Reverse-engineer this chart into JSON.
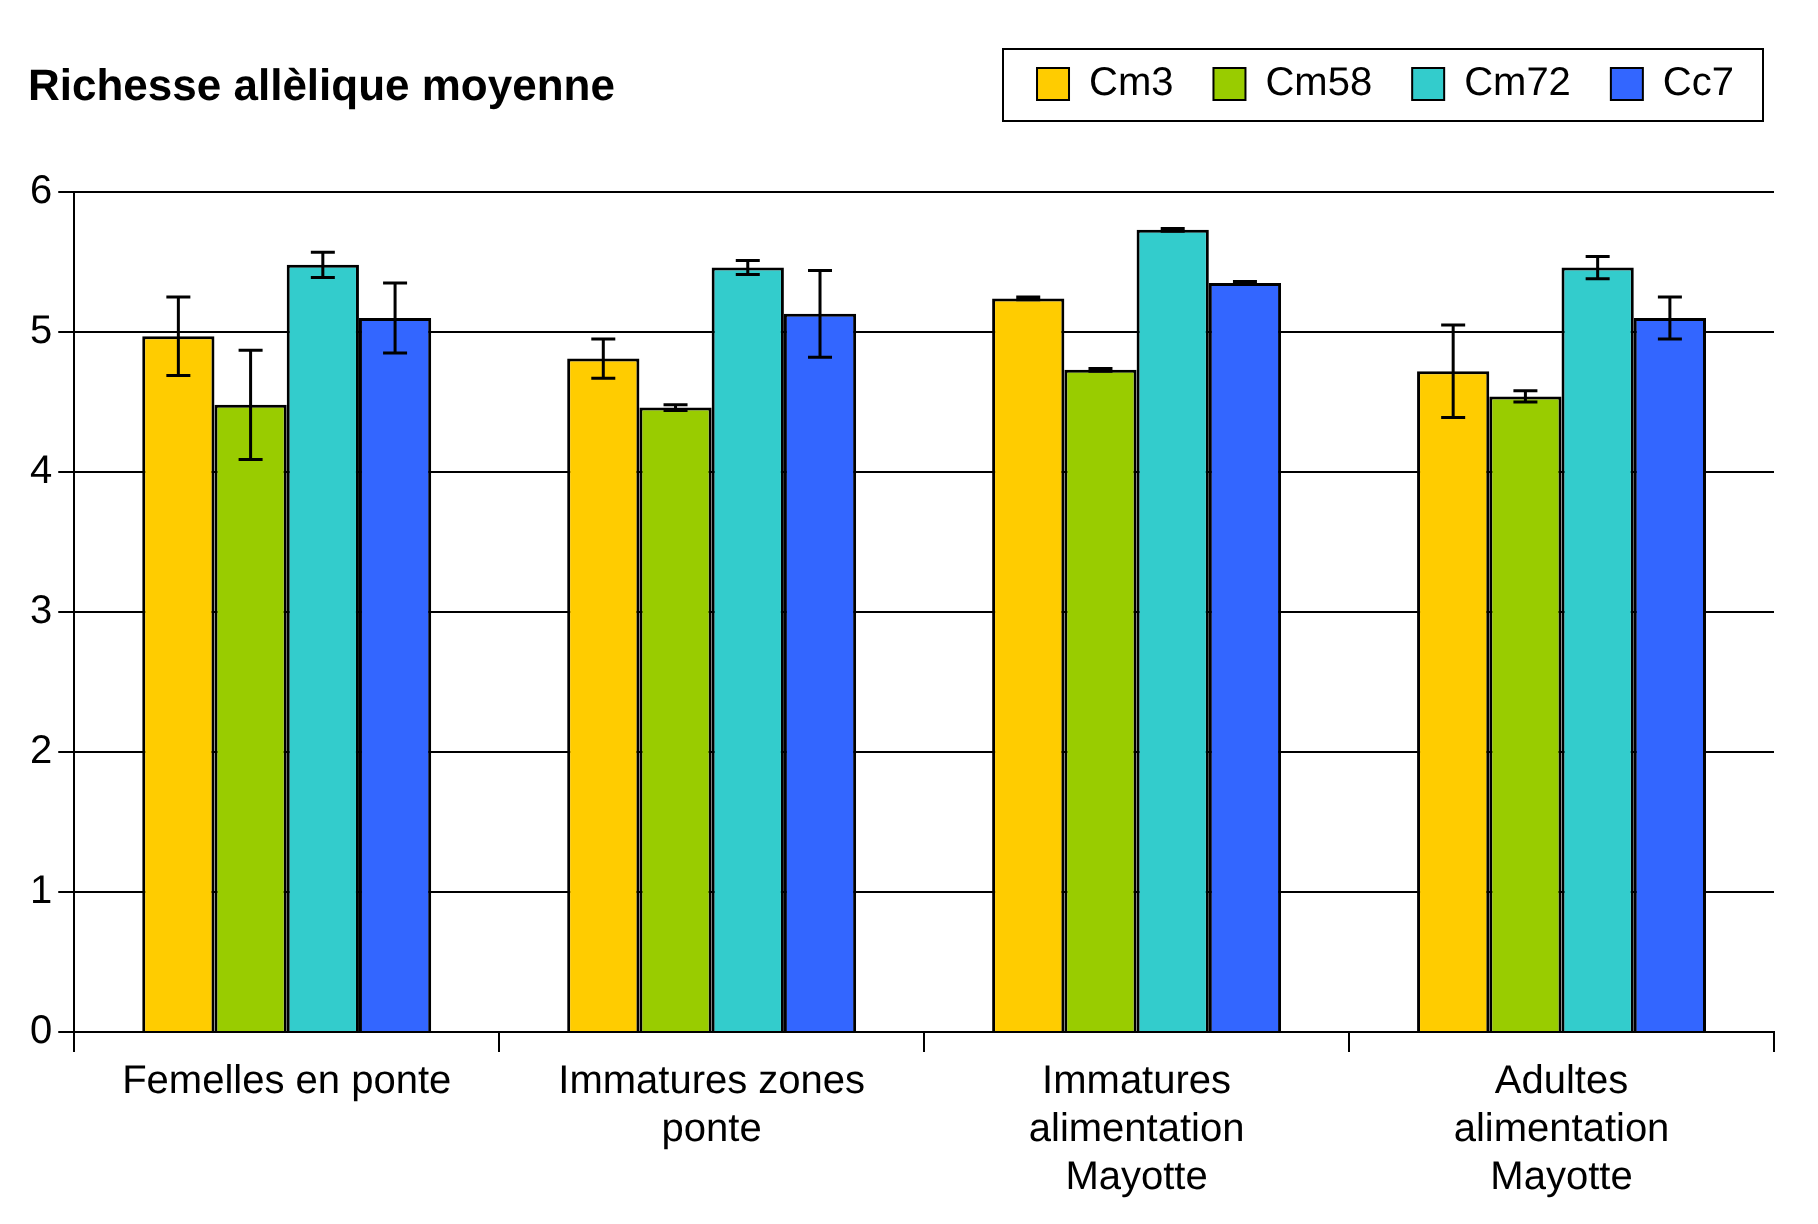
{
  "chart_data": {
    "type": "bar",
    "title": "Richesse allèlique moyenne",
    "categories": [
      "Femelles en ponte",
      "Immatures zones ponte",
      "Immatures alimentation Mayotte",
      "Adultes alimentation Mayotte"
    ],
    "ylim": [
      0,
      6
    ],
    "yticks": [
      0,
      1,
      2,
      3,
      4,
      5,
      6
    ],
    "grid": "y",
    "legend": "top right",
    "series": [
      {
        "name": "Cm3",
        "color": "#ffcc00",
        "values": [
          4.97,
          4.81,
          5.24,
          4.72
        ],
        "errors": [
          0.28,
          0.14,
          0.01,
          0.33
        ]
      },
      {
        "name": "Cm58",
        "color": "#99cc00",
        "values": [
          4.48,
          4.46,
          4.73,
          4.54
        ],
        "errors": [
          0.39,
          0.02,
          0.01,
          0.04
        ]
      },
      {
        "name": "Cm72",
        "color": "#33cccc",
        "values": [
          5.48,
          5.46,
          5.73,
          5.46
        ],
        "errors": [
          0.09,
          0.05,
          0.01,
          0.08
        ]
      },
      {
        "name": "Cc7",
        "color": "#3366ff",
        "values": [
          5.1,
          5.13,
          5.35,
          5.1
        ],
        "errors": [
          0.25,
          0.31,
          0.01,
          0.15
        ]
      }
    ]
  }
}
